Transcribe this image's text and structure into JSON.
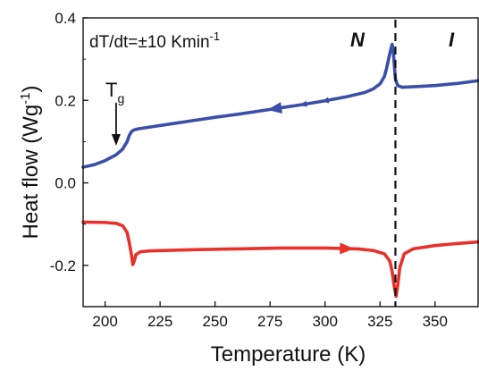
{
  "chart_data": {
    "type": "line",
    "xlabel": "Temperature (K)",
    "ylabel_main": "Heat flow (Wg",
    "ylabel_sup": "-1",
    "ylabel_close": ")",
    "xlim": [
      190,
      370
    ],
    "ylim": [
      -0.3,
      0.4
    ],
    "xticks": [
      200,
      225,
      250,
      275,
      300,
      325,
      350
    ],
    "yticks": [
      -0.2,
      0.0,
      0.2,
      0.4
    ],
    "ytick_labels": [
      "-0.2",
      "0.0",
      "0.2",
      "0.4"
    ],
    "annotations": {
      "rate_main": "dT/dt=±10 Kmin",
      "rate_sup": "-1",
      "tg_main": "T",
      "tg_sub": "g",
      "tg_x": 205,
      "phase_n": "N",
      "phase_i": "I"
    },
    "transition_x": 332,
    "series": [
      {
        "direction": "cooling",
        "color": "#3a4fa8",
        "points": [
          [
            190,
            0.038
          ],
          [
            195,
            0.044
          ],
          [
            200,
            0.054
          ],
          [
            205,
            0.068
          ],
          [
            208,
            0.082
          ],
          [
            210,
            0.1
          ],
          [
            211,
            0.115
          ],
          [
            212,
            0.124
          ],
          [
            213,
            0.128
          ],
          [
            215,
            0.131
          ],
          [
            220,
            0.135
          ],
          [
            230,
            0.143
          ],
          [
            240,
            0.151
          ],
          [
            250,
            0.159
          ],
          [
            260,
            0.166
          ],
          [
            270,
            0.174
          ],
          [
            280,
            0.182
          ],
          [
            290,
            0.19
          ],
          [
            300,
            0.199
          ],
          [
            310,
            0.209
          ],
          [
            318,
            0.219
          ],
          [
            322,
            0.228
          ],
          [
            325,
            0.24
          ],
          [
            327,
            0.258
          ],
          [
            328,
            0.278
          ],
          [
            329,
            0.303
          ],
          [
            330,
            0.326
          ],
          [
            330.5,
            0.336
          ],
          [
            331,
            0.32
          ],
          [
            331.5,
            0.285
          ],
          [
            332,
            0.252
          ],
          [
            333,
            0.236
          ],
          [
            335,
            0.232
          ],
          [
            340,
            0.233
          ],
          [
            350,
            0.236
          ],
          [
            360,
            0.241
          ],
          [
            370,
            0.248
          ]
        ],
        "arrows_at": [
          277,
          290,
          300
        ]
      },
      {
        "direction": "heating",
        "color": "#e8312a",
        "points": [
          [
            190,
            -0.095
          ],
          [
            200,
            -0.096
          ],
          [
            205,
            -0.098
          ],
          [
            208,
            -0.104
          ],
          [
            210,
            -0.12
          ],
          [
            211,
            -0.145
          ],
          [
            212,
            -0.175
          ],
          [
            212.6,
            -0.198
          ],
          [
            213.2,
            -0.19
          ],
          [
            214,
            -0.174
          ],
          [
            216,
            -0.167
          ],
          [
            220,
            -0.165
          ],
          [
            240,
            -0.162
          ],
          [
            260,
            -0.16
          ],
          [
            280,
            -0.158
          ],
          [
            300,
            -0.158
          ],
          [
            315,
            -0.16
          ],
          [
            322,
            -0.164
          ],
          [
            327,
            -0.172
          ],
          [
            329.5,
            -0.19
          ],
          [
            330.5,
            -0.215
          ],
          [
            331.5,
            -0.252
          ],
          [
            332.3,
            -0.275
          ],
          [
            333,
            -0.25
          ],
          [
            334,
            -0.205
          ],
          [
            336,
            -0.172
          ],
          [
            340,
            -0.16
          ],
          [
            350,
            -0.152
          ],
          [
            360,
            -0.147
          ],
          [
            370,
            -0.143
          ]
        ],
        "arrows_at": [
          310
        ]
      }
    ]
  }
}
